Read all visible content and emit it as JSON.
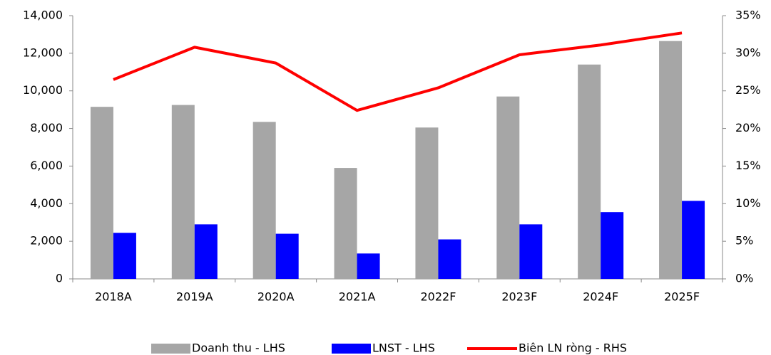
{
  "chart_data": {
    "type": "bar-line",
    "categories": [
      "2018A",
      "2019A",
      "2020A",
      "2021A",
      "2022F",
      "2023F",
      "2024F",
      "2025F"
    ],
    "series": [
      {
        "name": "Doanh thu - LHS",
        "color": "#a6a6a6",
        "type": "bar",
        "values": [
          9150,
          9250,
          8350,
          5900,
          8050,
          9700,
          11400,
          12650
        ]
      },
      {
        "name": "LNST - LHS",
        "color": "#0000ff",
        "type": "bar",
        "values": [
          2450,
          2900,
          2400,
          1350,
          2100,
          2900,
          3550,
          4150
        ]
      },
      {
        "name": "Biên LN ròng - RHS",
        "color": "#ff0000",
        "type": "line",
        "axis": "y2",
        "values": [
          26.5,
          30.8,
          28.7,
          22.4,
          25.4,
          29.8,
          31.1,
          32.7
        ]
      }
    ],
    "ylim": [
      0,
      14000
    ],
    "yticks": [
      0,
      {
        "value": 2000,
        "label": "2,000"
      },
      {
        "value": 4000,
        "label": "4,000"
      },
      {
        "value": 6000,
        "label": "6,000"
      },
      {
        "value": 8000,
        "label": "8,000"
      },
      {
        "value": 10000,
        "label": "10,000"
      },
      {
        "value": 12000,
        "label": "12,000"
      },
      {
        "value": 14000,
        "label": "14,000"
      }
    ],
    "y2lim": [
      0,
      35
    ],
    "y2ticks": [
      {
        "value": 0,
        "label": "0%"
      },
      {
        "value": 5,
        "label": "5%"
      },
      {
        "value": 10,
        "label": "10%"
      },
      {
        "value": 15,
        "label": "15%"
      },
      {
        "value": 20,
        "label": "20%"
      },
      {
        "value": 25,
        "label": "25%"
      },
      {
        "value": 30,
        "label": "30%"
      },
      {
        "value": 35,
        "label": "35%"
      }
    ],
    "legend": "bottom"
  }
}
